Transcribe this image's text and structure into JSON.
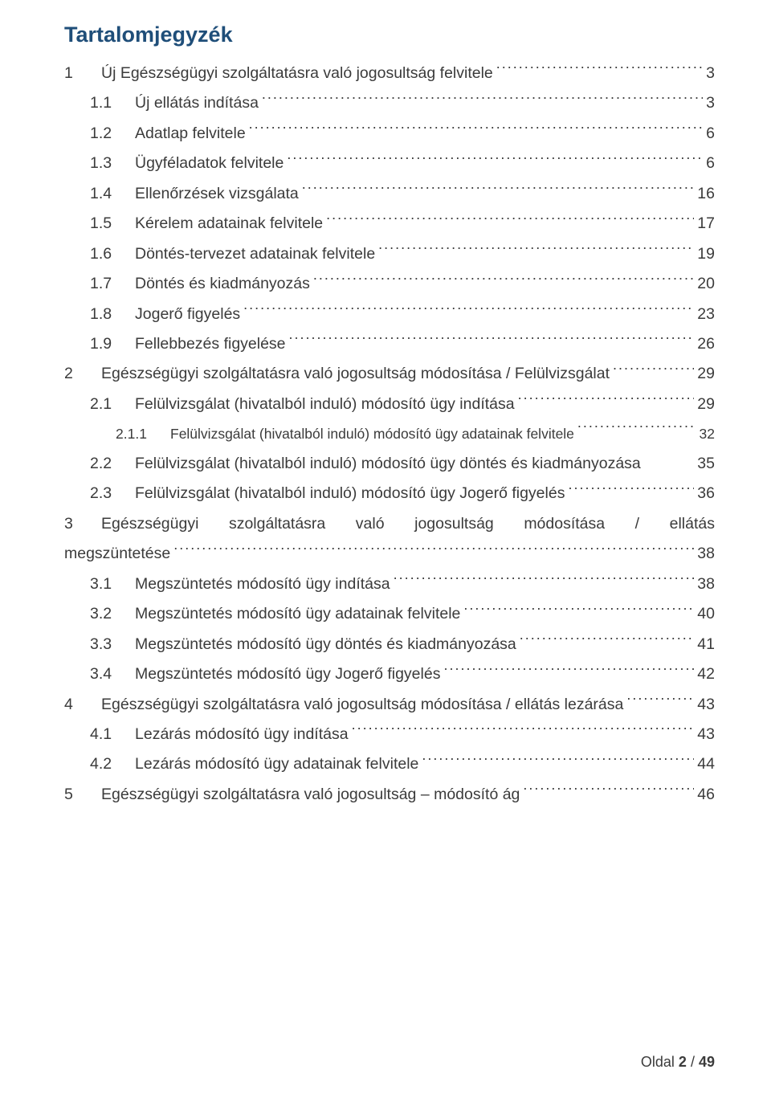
{
  "colors": {
    "title": "#1f4e79",
    "body": "#3b3b3b",
    "footer": "#3b3b3b",
    "background": "#ffffff"
  },
  "title": "Tartalomjegyzék",
  "toc": [
    {
      "level": 1,
      "num": "1",
      "label": "Új Egészségügyi szolgáltatásra való jogosultság felvitele",
      "page": "3"
    },
    {
      "level": 2,
      "num": "1.1",
      "label": "Új ellátás indítása",
      "page": "3"
    },
    {
      "level": 2,
      "num": "1.2",
      "label": "Adatlap felvitele",
      "page": "6"
    },
    {
      "level": 2,
      "num": "1.3",
      "label": "Ügyféladatok felvitele",
      "page": "6"
    },
    {
      "level": 2,
      "num": "1.4",
      "label": "Ellenőrzések vizsgálata",
      "page": "16"
    },
    {
      "level": 2,
      "num": "1.5",
      "label": "Kérelem adatainak felvitele",
      "page": "17"
    },
    {
      "level": 2,
      "num": "1.6",
      "label": "Döntés-tervezet adatainak felvitele",
      "page": "19"
    },
    {
      "level": 2,
      "num": "1.7",
      "label": "Döntés és kiadmányozás",
      "page": "20"
    },
    {
      "level": 2,
      "num": "1.8",
      "label": "Jogerő figyelés",
      "page": "23"
    },
    {
      "level": 2,
      "num": "1.9",
      "label": "Fellebbezés figyelése",
      "page": "26"
    },
    {
      "level": 1,
      "num": "2",
      "label": "Egészségügyi szolgáltatásra való jogosultság módosítása / Felülvizsgálat",
      "page": "29"
    },
    {
      "level": 2,
      "num": "2.1",
      "label": "Felülvizsgálat (hivatalból induló) módosító ügy indítása",
      "page": "29"
    },
    {
      "level": 3,
      "num": "2.1.1",
      "label": "Felülvizsgálat (hivatalból induló) módosító ügy adatainak felvitele",
      "page": "32"
    },
    {
      "level": 2,
      "num": "2.2",
      "label": "Felülvizsgálat (hivatalból induló) módosító ügy döntés és kiadmányozása",
      "page": "35",
      "nodots": true
    },
    {
      "level": 2,
      "num": "2.3",
      "label": "Felülvizsgálat (hivatalból induló) módosító ügy Jogerő figyelés",
      "page": "36"
    },
    {
      "level": 1,
      "num": "3",
      "label_line1": "Egészségügyi   szolgáltatásra   való   jogosultság   módosítása   /   ellátás",
      "label_line2": "megszüntetése",
      "page": "38",
      "multiline": true
    },
    {
      "level": 2,
      "num": "3.1",
      "label": "Megszüntetés módosító ügy indítása",
      "page": "38"
    },
    {
      "level": 2,
      "num": "3.2",
      "label": "Megszüntetés módosító ügy adatainak felvitele",
      "page": "40"
    },
    {
      "level": 2,
      "num": "3.3",
      "label": "Megszüntetés módosító ügy döntés és kiadmányozása",
      "page": "41"
    },
    {
      "level": 2,
      "num": "3.4",
      "label": "Megszüntetés módosító ügy Jogerő figyelés",
      "page": "42"
    },
    {
      "level": 1,
      "num": "4",
      "label": "Egészségügyi szolgáltatásra való jogosultság módosítása / ellátás lezárása",
      "page": "43"
    },
    {
      "level": 2,
      "num": "4.1",
      "label": "Lezárás módosító ügy indítása",
      "page": "43"
    },
    {
      "level": 2,
      "num": "4.2",
      "label": "Lezárás módosító ügy adatainak felvitele",
      "page": "44"
    },
    {
      "level": 1,
      "num": "5",
      "label": "Egészségügyi szolgáltatásra való jogosultság – módosító ág",
      "page": "46"
    }
  ],
  "footer": {
    "label": "Oldal",
    "current": "2",
    "sep": "/",
    "total": "49"
  }
}
